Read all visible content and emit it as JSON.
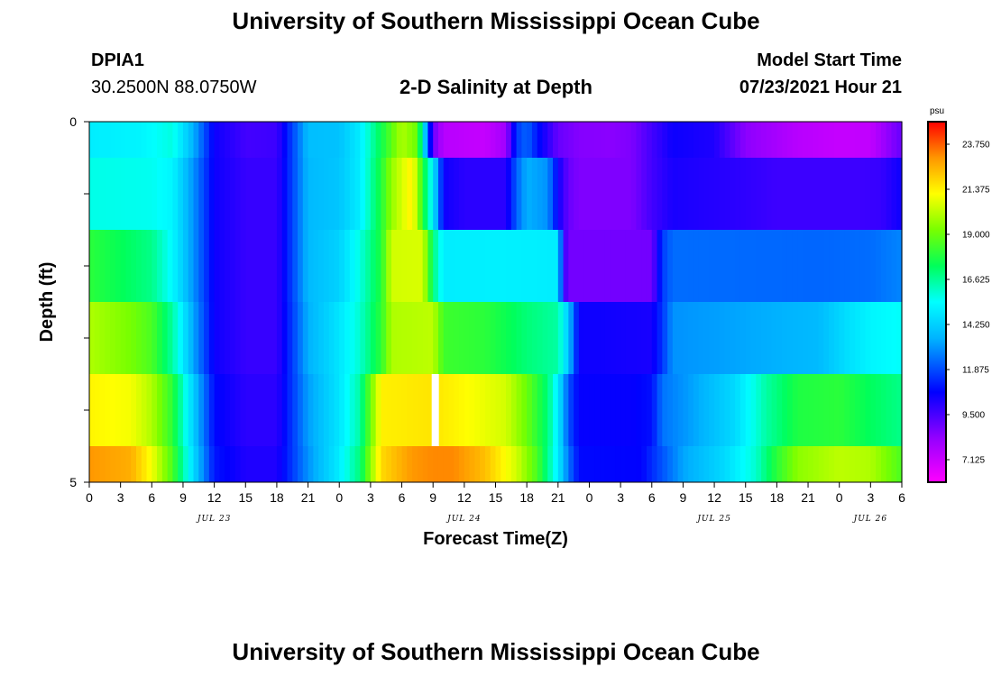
{
  "header": {
    "title_top": "University of Southern Mississippi Ocean Cube",
    "title_bottom": "University of Southern Mississippi Ocean Cube",
    "station_id": "DPIA1",
    "coordinates": "30.2500N  88.0750W",
    "model_start_label": "Model Start Time",
    "model_start_value": "07/23/2021 Hour 21"
  },
  "chart_data": {
    "type": "heatmap",
    "title": "2-D Salinity at Depth",
    "xlabel": "Forecast Time(Z)",
    "ylabel": "Depth (ft)",
    "x_tick_labels": [
      "0",
      "3",
      "6",
      "9",
      "12",
      "15",
      "18",
      "21",
      "0",
      "3",
      "6",
      "9",
      "12",
      "15",
      "18",
      "21",
      "0",
      "3",
      "6",
      "9",
      "12",
      "15",
      "18",
      "21",
      "0",
      "3",
      "6"
    ],
    "date_labels": [
      {
        "label": "JUL 23",
        "hour": 12
      },
      {
        "label": "JUL 24",
        "hour": 36
      },
      {
        "label": "JUL 25",
        "hour": 60
      },
      {
        "label": "JUL 26",
        "hour": 75
      }
    ],
    "x_range_hours": [
      0,
      78
    ],
    "y_tick_labels": [
      {
        "value": 0,
        "label": "0"
      },
      {
        "value": 5,
        "label": "5"
      }
    ],
    "y_range": [
      0,
      5
    ],
    "colorbar": {
      "unit": "psu",
      "min": 5.9375,
      "max": 24.9375,
      "labels": [
        "23.750",
        "21.375",
        "19.000",
        "16.625",
        "14.250",
        "11.875",
        "9.500",
        "7.125"
      ]
    },
    "missing_column": {
      "hour": 33,
      "layer": 4
    },
    "layers": [
      {
        "depth_top": 0.0,
        "depth_bottom": 0.5,
        "keypoints": [
          [
            0,
            15.0
          ],
          [
            5,
            15.2
          ],
          [
            8,
            15.8
          ],
          [
            10,
            13.5
          ],
          [
            12,
            10.5
          ],
          [
            15,
            9.6
          ],
          [
            18,
            9.7
          ],
          [
            21,
            13.8
          ],
          [
            24,
            13.9
          ],
          [
            26,
            15.0
          ],
          [
            28,
            17.5
          ],
          [
            30,
            20.0
          ],
          [
            31.5,
            19.0
          ],
          [
            33,
            9.0
          ],
          [
            34,
            7.5
          ],
          [
            38,
            7.2
          ],
          [
            40,
            8.0
          ],
          [
            41,
            11.5
          ],
          [
            42,
            12.3
          ],
          [
            43,
            11.0
          ],
          [
            45,
            9.0
          ],
          [
            47,
            8.5
          ],
          [
            50,
            8.4
          ],
          [
            52,
            8.6
          ],
          [
            54,
            9.6
          ],
          [
            56,
            10.5
          ],
          [
            60,
            10.2
          ],
          [
            63,
            8.4
          ],
          [
            68,
            7.5
          ],
          [
            72,
            7.2
          ],
          [
            75,
            7.3
          ],
          [
            77,
            8.5
          ],
          [
            78,
            9.0
          ]
        ]
      },
      {
        "depth_top": 0.5,
        "depth_bottom": 1.5,
        "keypoints": [
          [
            0,
            15.7
          ],
          [
            6,
            15.6
          ],
          [
            8,
            15.2
          ],
          [
            10,
            13.0
          ],
          [
            12,
            10.5
          ],
          [
            15,
            9.8
          ],
          [
            18,
            9.8
          ],
          [
            21,
            13.7
          ],
          [
            24,
            14.0
          ],
          [
            26,
            15.0
          ],
          [
            28,
            17.8
          ],
          [
            29,
            19.6
          ],
          [
            31,
            21.5
          ],
          [
            32,
            18.0
          ],
          [
            33,
            15.0
          ],
          [
            34,
            10.5
          ],
          [
            36,
            10.0
          ],
          [
            40,
            10.0
          ],
          [
            41,
            12.2
          ],
          [
            42,
            13.5
          ],
          [
            44,
            13.0
          ],
          [
            45,
            10.5
          ],
          [
            46,
            9.0
          ],
          [
            47,
            8.6
          ],
          [
            52,
            8.6
          ],
          [
            54,
            9.6
          ],
          [
            56,
            10.3
          ],
          [
            62,
            10.0
          ],
          [
            66,
            9.7
          ],
          [
            70,
            9.7
          ],
          [
            74,
            9.7
          ],
          [
            76,
            9.8
          ],
          [
            78,
            10.5
          ]
        ]
      },
      {
        "depth_top": 1.5,
        "depth_bottom": 2.5,
        "keypoints": [
          [
            0,
            18.0
          ],
          [
            3,
            17.4
          ],
          [
            6,
            16.8
          ],
          [
            8,
            15.3
          ],
          [
            10,
            13.0
          ],
          [
            12,
            10.5
          ],
          [
            15,
            9.8
          ],
          [
            18,
            9.8
          ],
          [
            21,
            13.7
          ],
          [
            24,
            14.3
          ],
          [
            26,
            15.8
          ],
          [
            28,
            17.8
          ],
          [
            29,
            20.5
          ],
          [
            32,
            20.6
          ],
          [
            33,
            17.0
          ],
          [
            34,
            15.0
          ],
          [
            40,
            15.1
          ],
          [
            45,
            15.0
          ],
          [
            45.5,
            10.0
          ],
          [
            46,
            8.8
          ],
          [
            54,
            8.8
          ],
          [
            55,
            11.6
          ],
          [
            56,
            12.4
          ],
          [
            70,
            12.3
          ],
          [
            75,
            12.4
          ],
          [
            78,
            12.8
          ]
        ]
      },
      {
        "depth_top": 2.5,
        "depth_bottom": 3.5,
        "keypoints": [
          [
            0,
            20.0
          ],
          [
            4,
            19.2
          ],
          [
            6,
            18.5
          ],
          [
            8,
            16.5
          ],
          [
            10,
            13.3
          ],
          [
            12,
            10.5
          ],
          [
            15,
            9.8
          ],
          [
            18,
            9.8
          ],
          [
            21,
            13.5
          ],
          [
            24,
            14.8
          ],
          [
            26,
            16.0
          ],
          [
            28,
            18.0
          ],
          [
            29,
            20.0
          ],
          [
            33,
            20.2
          ],
          [
            34,
            18.3
          ],
          [
            38,
            18.0
          ],
          [
            42,
            17.0
          ],
          [
            45,
            16.5
          ],
          [
            46,
            14.0
          ],
          [
            47,
            10.5
          ],
          [
            54,
            10.3
          ],
          [
            55,
            11.5
          ],
          [
            56,
            13.0
          ],
          [
            70,
            13.7
          ],
          [
            73,
            14.7
          ],
          [
            75,
            15.2
          ],
          [
            78,
            15.5
          ]
        ]
      },
      {
        "depth_top": 3.5,
        "depth_bottom": 4.5,
        "keypoints": [
          [
            0,
            21.3
          ],
          [
            4,
            21.0
          ],
          [
            6,
            20.0
          ],
          [
            8,
            18.0
          ],
          [
            10,
            14.2
          ],
          [
            12,
            10.8
          ],
          [
            15,
            10.0
          ],
          [
            18,
            10.0
          ],
          [
            21,
            13.2
          ],
          [
            24,
            14.8
          ],
          [
            26,
            16.5
          ],
          [
            27,
            19.0
          ],
          [
            28,
            21.4
          ],
          [
            33,
            21.6
          ],
          [
            36,
            21.2
          ],
          [
            40,
            20.5
          ],
          [
            42,
            19.0
          ],
          [
            44,
            17.0
          ],
          [
            45,
            15.0
          ],
          [
            46,
            12.0
          ],
          [
            47,
            10.6
          ],
          [
            52,
            10.6
          ],
          [
            54,
            10.9
          ],
          [
            55,
            12.5
          ],
          [
            58,
            13.3
          ],
          [
            62,
            14.5
          ],
          [
            65,
            16.5
          ],
          [
            68,
            17.8
          ],
          [
            72,
            18.0
          ],
          [
            75,
            17.3
          ],
          [
            78,
            16.8
          ]
        ]
      },
      {
        "depth_top": 4.5,
        "depth_bottom": 5.0,
        "keypoints": [
          [
            0,
            23.0
          ],
          [
            4,
            22.6
          ],
          [
            6,
            21.0
          ],
          [
            8,
            18.5
          ],
          [
            10,
            14.5
          ],
          [
            12,
            11.0
          ],
          [
            15,
            10.2
          ],
          [
            18,
            10.2
          ],
          [
            21,
            13.0
          ],
          [
            24,
            15.0
          ],
          [
            26,
            17.0
          ],
          [
            27,
            19.5
          ],
          [
            28,
            21.8
          ],
          [
            31,
            23.0
          ],
          [
            33,
            23.2
          ],
          [
            35,
            23.2
          ],
          [
            38,
            22.3
          ],
          [
            41,
            20.5
          ],
          [
            43,
            18.5
          ],
          [
            45,
            15.0
          ],
          [
            46,
            12.5
          ],
          [
            47,
            10.8
          ],
          [
            53,
            10.7
          ],
          [
            55,
            12.0
          ],
          [
            57,
            13.3
          ],
          [
            61,
            14.5
          ],
          [
            64,
            16.0
          ],
          [
            66,
            18.0
          ],
          [
            68,
            19.5
          ],
          [
            72,
            20.2
          ],
          [
            75,
            20.0
          ],
          [
            77,
            19.0
          ],
          [
            78,
            18.5
          ]
        ]
      }
    ]
  }
}
